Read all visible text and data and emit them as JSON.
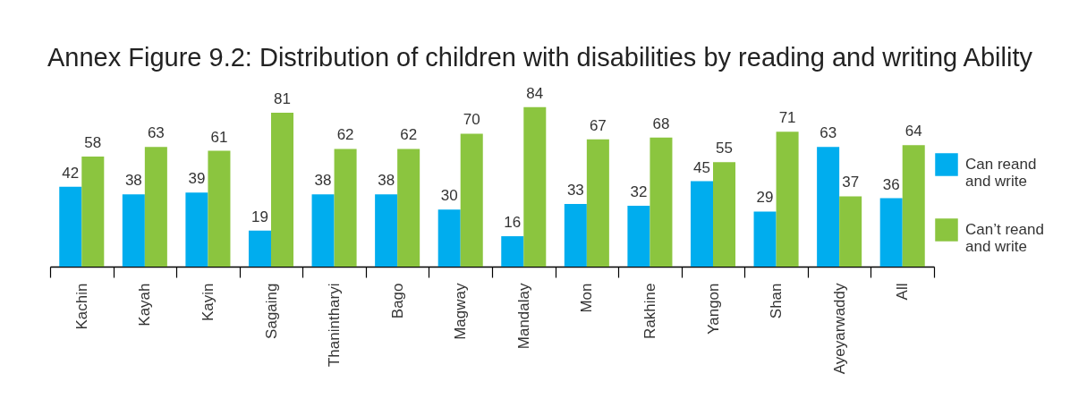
{
  "chart_data": {
    "type": "bar",
    "title": "Annex Figure 9.2: Distribution of children with disabilities by reading and writing Ability",
    "categories": [
      "Kachin",
      "Kayah",
      "Kayin",
      "Sagaing",
      "Thanintharyi",
      "Bago",
      "Magway",
      "Mandalay",
      "Mon",
      "Rakhine",
      "Yangon",
      "Shan",
      "Ayeyarwaddy",
      "All"
    ],
    "series": [
      {
        "name": "Can reand and write",
        "color": "#00adee",
        "values": [
          42,
          38,
          39,
          19,
          38,
          38,
          30,
          16,
          33,
          32,
          45,
          29,
          63,
          36
        ]
      },
      {
        "name": "Can’t reand and write",
        "color": "#8bc53f",
        "values": [
          58,
          63,
          61,
          81,
          62,
          62,
          70,
          84,
          67,
          68,
          55,
          71,
          37,
          64
        ]
      }
    ],
    "data_labels": true,
    "legend": "right",
    "tick_labels": "x"
  }
}
